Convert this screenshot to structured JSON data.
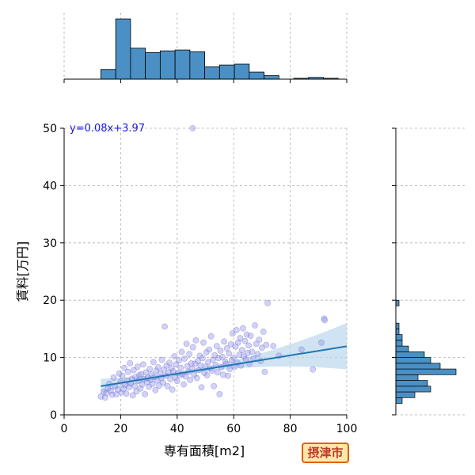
{
  "chart_data": {
    "type": "scatter",
    "xlabel": "専有面積[m2]",
    "ylabel": "賃料[万円]",
    "xlim": [
      0,
      100
    ],
    "ylim": [
      0,
      50
    ],
    "xticks": [
      0,
      20,
      40,
      60,
      80,
      100
    ],
    "yticks": [
      0,
      10,
      20,
      30,
      40,
      50
    ],
    "grid": true,
    "regression": {
      "slope": 0.08,
      "intercept": 3.97,
      "x_range": [
        13,
        100
      ],
      "label": "y=0.08x+3.97"
    },
    "points": [
      [
        13,
        3.2
      ],
      [
        14,
        4.0
      ],
      [
        14.5,
        3.0
      ],
      [
        15,
        3.8
      ],
      [
        15.5,
        4.6
      ],
      [
        16,
        5.4
      ],
      [
        16.5,
        4.2
      ],
      [
        17,
        3.5
      ],
      [
        17.5,
        6.5
      ],
      [
        18,
        5.0
      ],
      [
        18.5,
        3.6
      ],
      [
        19,
        4.4
      ],
      [
        19.5,
        7.2
      ],
      [
        20,
        5.8
      ],
      [
        20.3,
        3.9
      ],
      [
        20.6,
        6.8
      ],
      [
        21,
        4.5
      ],
      [
        21.3,
        8.2
      ],
      [
        21.6,
        5.2
      ],
      [
        22,
        3.7
      ],
      [
        22.3,
        6.0
      ],
      [
        22.6,
        7.5
      ],
      [
        23,
        4.8
      ],
      [
        23.3,
        9.0
      ],
      [
        23.6,
        5.5
      ],
      [
        24,
        6.3
      ],
      [
        24.3,
        3.4
      ],
      [
        24.6,
        7.8
      ],
      [
        25,
        5.0
      ],
      [
        25.3,
        6.6
      ],
      [
        25.6,
        4.1
      ],
      [
        26,
        8.4
      ],
      [
        26.3,
        5.9
      ],
      [
        26.6,
        6.9
      ],
      [
        27,
        4.6
      ],
      [
        27.3,
        7.1
      ],
      [
        27.6,
        5.3
      ],
      [
        28,
        8.8
      ],
      [
        28.3,
        6.2
      ],
      [
        28.6,
        3.6
      ],
      [
        29,
        7.4
      ],
      [
        29.3,
        5.7
      ],
      [
        29.6,
        6.5
      ],
      [
        30,
        4.9
      ],
      [
        30.3,
        8.0
      ],
      [
        30.6,
        6.1
      ],
      [
        31,
        7.0
      ],
      [
        31.3,
        5.4
      ],
      [
        31.6,
        9.2
      ],
      [
        32,
        6.6
      ],
      [
        32.3,
        4.3
      ],
      [
        32.6,
        7.7
      ],
      [
        33,
        6.0
      ],
      [
        33.3,
        8.3
      ],
      [
        33.6,
        5.1
      ],
      [
        34,
        7.2
      ],
      [
        34.3,
        6.4
      ],
      [
        34.6,
        9.6
      ],
      [
        35,
        5.6
      ],
      [
        35.3,
        7.9
      ],
      [
        35.6,
        15.4
      ],
      [
        36,
        6.8
      ],
      [
        36.3,
        8.6
      ],
      [
        36.6,
        5.0
      ],
      [
        37,
        7.4
      ],
      [
        37.3,
        9.1
      ],
      [
        37.6,
        6.2
      ],
      [
        38,
        8.1
      ],
      [
        38.3,
        4.4
      ],
      [
        38.6,
        7.6
      ],
      [
        39,
        10.2
      ],
      [
        39.3,
        6.5
      ],
      [
        39.6,
        8.8
      ],
      [
        40,
        5.9
      ],
      [
        40.3,
        7.3
      ],
      [
        40.6,
        9.5
      ],
      [
        41,
        6.9
      ],
      [
        41.3,
        8.2
      ],
      [
        41.6,
        11.0
      ],
      [
        42,
        7.1
      ],
      [
        42.3,
        5.3
      ],
      [
        42.6,
        9.8
      ],
      [
        43,
        6.7
      ],
      [
        43.3,
        12.4
      ],
      [
        43.6,
        8.5
      ],
      [
        44,
        7.5
      ],
      [
        44.3,
        10.6
      ],
      [
        44.6,
        6.1
      ],
      [
        45,
        9.0
      ],
      [
        45.3,
        8.0
      ],
      [
        45.6,
        11.8
      ],
      [
        46,
        7.0
      ],
      [
        46.3,
        8.9
      ],
      [
        46.6,
        13.0
      ],
      [
        47,
        6.4
      ],
      [
        47.3,
        9.4
      ],
      [
        47.6,
        7.8
      ],
      [
        48,
        10.3
      ],
      [
        48.3,
        8.6
      ],
      [
        48.6,
        4.8
      ],
      [
        49,
        9.9
      ],
      [
        49.3,
        12.6
      ],
      [
        49.6,
        7.3
      ],
      [
        50,
        8.4
      ],
      [
        50.3,
        10.9
      ],
      [
        50.6,
        6.9
      ],
      [
        51,
        9.2
      ],
      [
        51.3,
        11.4
      ],
      [
        51.6,
        8.1
      ],
      [
        52,
        13.7
      ],
      [
        52.3,
        7.7
      ],
      [
        52.6,
        9.6
      ],
      [
        53,
        5.0
      ],
      [
        53.3,
        10.4
      ],
      [
        53.6,
        8.7
      ],
      [
        54,
        12.0
      ],
      [
        54.3,
        7.4
      ],
      [
        54.6,
        9.9
      ],
      [
        55,
        3.6
      ],
      [
        55.3,
        11.2
      ],
      [
        55.6,
        8.3
      ],
      [
        56,
        10.1
      ],
      [
        56.3,
        7.0
      ],
      [
        56.6,
        12.8
      ],
      [
        57,
        9.3
      ],
      [
        57.3,
        8.9
      ],
      [
        57.6,
        11.6
      ],
      [
        58,
        6.8
      ],
      [
        58.3,
        10.7
      ],
      [
        58.6,
        8.0
      ],
      [
        59,
        12.3
      ],
      [
        59.3,
        9.5
      ],
      [
        59.6,
        14.2
      ],
      [
        60,
        10.0
      ],
      [
        60.3,
        8.4
      ],
      [
        60.6,
        11.9
      ],
      [
        61,
        14.8
      ],
      [
        61.3,
        9.1
      ],
      [
        61.6,
        12.6
      ],
      [
        62,
        10.5
      ],
      [
        62.3,
        13.4
      ],
      [
        62.6,
        8.6
      ],
      [
        63,
        11.3
      ],
      [
        63.3,
        15.1
      ],
      [
        63.6,
        10.2
      ],
      [
        64,
        12.9
      ],
      [
        64.3,
        9.7
      ],
      [
        64.6,
        14.0
      ],
      [
        65,
        10.8
      ],
      [
        65.3,
        12.1
      ],
      [
        65.6,
        8.9
      ],
      [
        66,
        13.8
      ],
      [
        66.5,
        11.0
      ],
      [
        67,
        9.8
      ],
      [
        67.5,
        15.6
      ],
      [
        68,
        12.4
      ],
      [
        68.5,
        10.6
      ],
      [
        69,
        13.1
      ],
      [
        69.5,
        9.4
      ],
      [
        70,
        11.7
      ],
      [
        70.5,
        14.5
      ],
      [
        71,
        7.5
      ],
      [
        71.5,
        12.2
      ],
      [
        72,
        19.5
      ],
      [
        74,
        12.0
      ],
      [
        76,
        10.3
      ],
      [
        84,
        11.4
      ],
      [
        88,
        7.9
      ],
      [
        91,
        12.6
      ],
      [
        92,
        16.8
      ],
      [
        92.2,
        16.5
      ],
      [
        45.5,
        50
      ]
    ],
    "marginal_x": {
      "bin_edges": [
        13,
        18.25,
        23.5,
        28.75,
        34,
        39.25,
        44.5,
        49.75,
        55,
        60.25,
        65.5,
        70.75,
        76,
        81.25,
        86.5,
        91.75,
        97
      ],
      "counts": [
        11,
        68,
        35,
        30,
        32,
        33,
        31,
        14,
        16,
        17,
        8,
        4,
        0,
        1,
        2,
        1
      ]
    },
    "marginal_y": {
      "bin_edges": [
        2,
        3,
        4,
        5,
        6,
        7,
        8,
        9,
        10,
        11,
        12,
        13,
        14,
        15,
        16,
        17,
        18,
        19,
        20
      ],
      "counts": [
        2,
        6,
        11,
        10,
        7,
        19,
        14,
        11,
        9,
        4,
        2,
        2,
        1,
        1,
        0,
        0,
        0,
        1
      ]
    }
  },
  "equation_label": "y=0.08x+3.97",
  "city_badge": "摂津市",
  "colors": {
    "scatter_fill": "#9b9be8",
    "scatter_edge": "#5a5acb",
    "hist_fill": "#4a90c4",
    "regression_line": "#1f77b4",
    "ci_band": "#bcd7ec",
    "grid": "#b0b0b0",
    "badge_bg": "#ffe9a8",
    "badge_border": "#e85d04",
    "badge_text": "#c0392b"
  }
}
